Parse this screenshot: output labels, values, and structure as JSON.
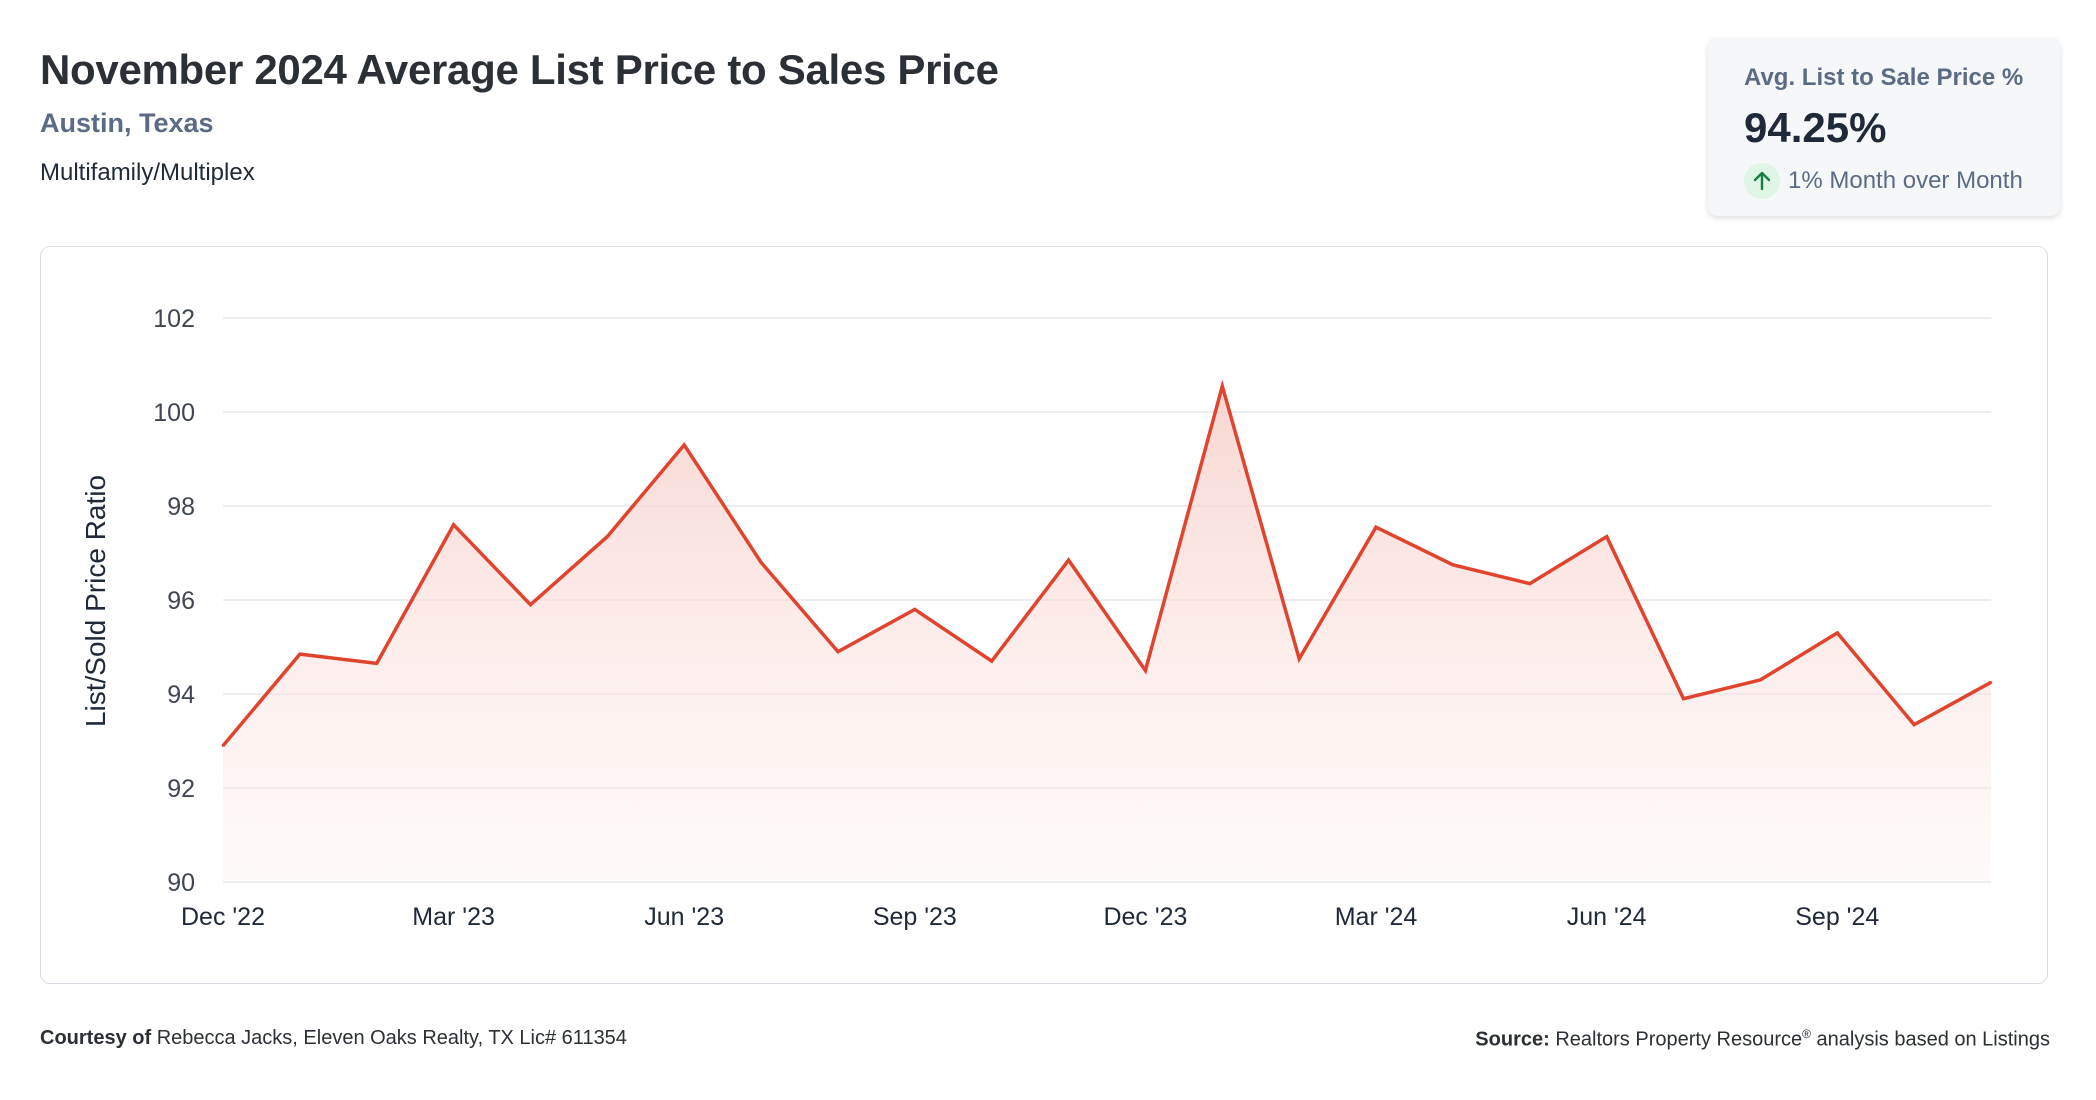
{
  "header": {
    "title": "November 2024 Average List Price to Sales Price",
    "location": "Austin, Texas",
    "category": "Multifamily/Multiplex"
  },
  "stat_card": {
    "label": "Avg. List to Sale Price %",
    "value": "94.25%",
    "change": "1% Month over Month",
    "change_icon": "arrow-up-icon",
    "change_color": "#16a34a"
  },
  "footer": {
    "courtesy_label": "Courtesy of",
    "courtesy_text": "Rebecca Jacks, Eleven Oaks Realty, TX Lic# 611354",
    "source_label": "Source:",
    "source_text_pre": "Realtors Property Resource",
    "source_sup": "®",
    "source_text_post": " analysis based on Listings"
  },
  "colors": {
    "line": "#e0442e",
    "fill": "#f9d7d2",
    "grid": "#e5e7eb",
    "axis_text": "#3f4652"
  },
  "chart_data": {
    "type": "area",
    "title": "",
    "ylabel": "List/Sold Price Ratio",
    "xlabel": "",
    "ylim": [
      90,
      102
    ],
    "yticks": [
      90,
      92,
      94,
      96,
      98,
      100,
      102
    ],
    "grid": true,
    "x": [
      "Dec '22",
      "Jan '23",
      "Feb '23",
      "Mar '23",
      "Apr '23",
      "May '23",
      "Jun '23",
      "Jul '23",
      "Aug '23",
      "Sep '23",
      "Oct '23",
      "Nov '23",
      "Dec '23",
      "Jan '24",
      "Feb '24",
      "Mar '24",
      "Apr '24",
      "May '24",
      "Jun '24",
      "Jul '24",
      "Aug '24",
      "Sep '24",
      "Oct '24",
      "Nov '24"
    ],
    "xtick_labels": [
      "Dec '22",
      "Mar '23",
      "Jun '23",
      "Sep '23",
      "Dec '23",
      "Mar '24",
      "Jun '24",
      "Sep '24"
    ],
    "series": [
      {
        "values": [
          92.9,
          94.85,
          94.65,
          97.6,
          95.9,
          97.35,
          99.3,
          96.8,
          94.9,
          95.8,
          94.7,
          96.85,
          94.5,
          100.55,
          94.75,
          97.55,
          96.75,
          96.35,
          97.35,
          93.9,
          94.3,
          95.3,
          93.35,
          94.25
        ]
      }
    ]
  }
}
